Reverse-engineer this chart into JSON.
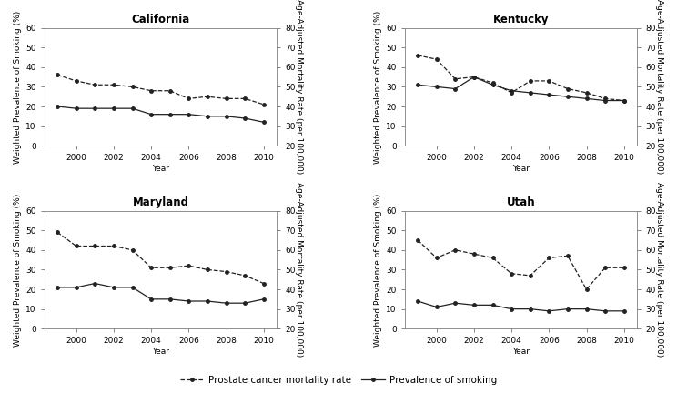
{
  "years": [
    1999,
    2000,
    2001,
    2002,
    2003,
    2004,
    2005,
    2006,
    2007,
    2008,
    2009,
    2010
  ],
  "states": [
    "California",
    "Kentucky",
    "Maryland",
    "Utah"
  ],
  "smoking": {
    "California": [
      20,
      19,
      19,
      19,
      19,
      16,
      16,
      16,
      15,
      15,
      14,
      12
    ],
    "Kentucky": [
      31,
      30,
      29,
      35,
      31,
      28,
      27,
      26,
      25,
      24,
      23,
      23
    ],
    "Maryland": [
      21,
      21,
      23,
      21,
      21,
      15,
      15,
      14,
      14,
      13,
      13,
      15
    ],
    "Utah": [
      14,
      11,
      13,
      12,
      12,
      10,
      10,
      9,
      10,
      10,
      9,
      9
    ]
  },
  "mortality": {
    "California": [
      36,
      33,
      31,
      31,
      30,
      28,
      28,
      24,
      25,
      24,
      24,
      21
    ],
    "Kentucky": [
      46,
      44,
      34,
      35,
      32,
      27,
      33,
      33,
      29,
      27,
      24,
      23
    ],
    "Maryland": [
      49,
      42,
      42,
      42,
      40,
      31,
      31,
      32,
      30,
      29,
      27,
      23
    ],
    "Utah": [
      45,
      36,
      40,
      38,
      36,
      28,
      27,
      36,
      37,
      20,
      31,
      31
    ]
  },
  "left_ylim": [
    0,
    60
  ],
  "left_yticks": [
    0,
    10,
    20,
    30,
    40,
    50,
    60
  ],
  "right_ylim": [
    20,
    80
  ],
  "right_yticks": [
    20,
    30,
    40,
    50,
    60,
    70,
    80
  ],
  "xlim": [
    1998.3,
    2010.7
  ],
  "xticks": [
    2000,
    2002,
    2004,
    2006,
    2008,
    2010
  ],
  "line_color": "#222222",
  "background_color": "#ffffff",
  "plot_bg": "#ffffff",
  "title_fontsize": 8.5,
  "label_fontsize": 6.5,
  "tick_fontsize": 6.5,
  "legend_fontsize": 7.5
}
